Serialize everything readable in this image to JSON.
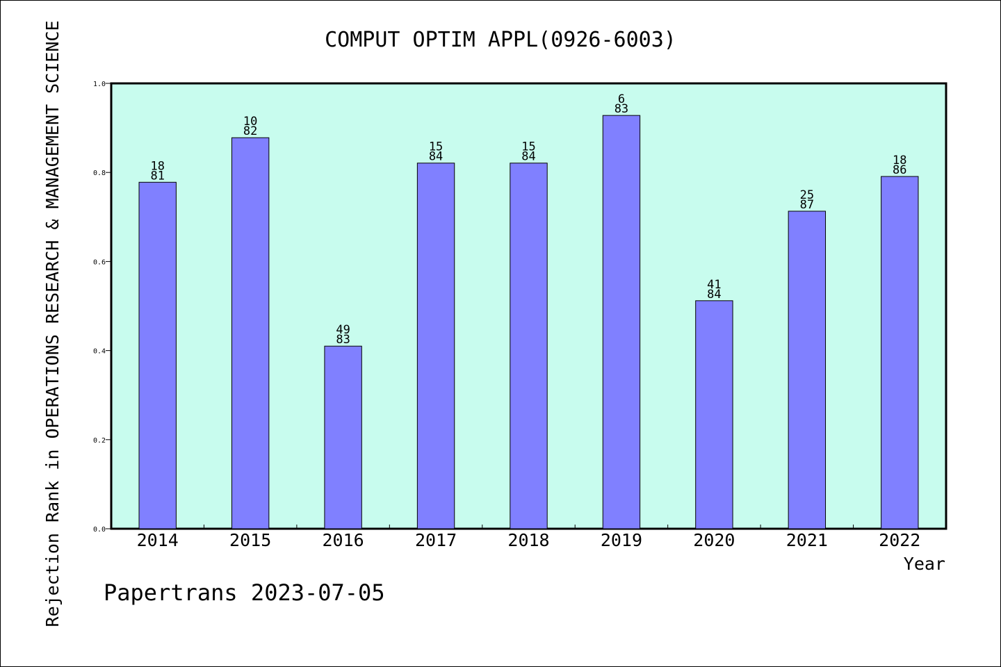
{
  "chart_data": {
    "type": "bar",
    "title": "COMPUT OPTIM APPL(0926-6003)",
    "xlabel": "Year",
    "ylabel": "Rejection Rank in OPERATIONS RESEARCH & MANAGEMENT SCIENCE",
    "footer": "Papertrans 2023-07-05",
    "categories": [
      "2014",
      "2015",
      "2016",
      "2017",
      "2018",
      "2019",
      "2020",
      "2021",
      "2022"
    ],
    "values": [
      0.778,
      0.878,
      0.41,
      0.821,
      0.821,
      0.928,
      0.512,
      0.713,
      0.791
    ],
    "data_labels": [
      {
        "rank": "18",
        "total": "81"
      },
      {
        "rank": "10",
        "total": "82"
      },
      {
        "rank": "49",
        "total": "83"
      },
      {
        "rank": "15",
        "total": "84"
      },
      {
        "rank": "15",
        "total": "84"
      },
      {
        "rank": "6",
        "total": "83"
      },
      {
        "rank": "41",
        "total": "84"
      },
      {
        "rank": "25",
        "total": "87"
      },
      {
        "rank": "18",
        "total": "86"
      }
    ],
    "yticks": [
      "0.0",
      "0.2",
      "0.4",
      "0.6",
      "0.8",
      "1.0"
    ],
    "ylim": [
      0,
      1
    ],
    "grid": false,
    "colors": {
      "plot_background": "#c8fcee",
      "bar_fill": "#8080ff",
      "bar_stroke": "#000000"
    }
  }
}
